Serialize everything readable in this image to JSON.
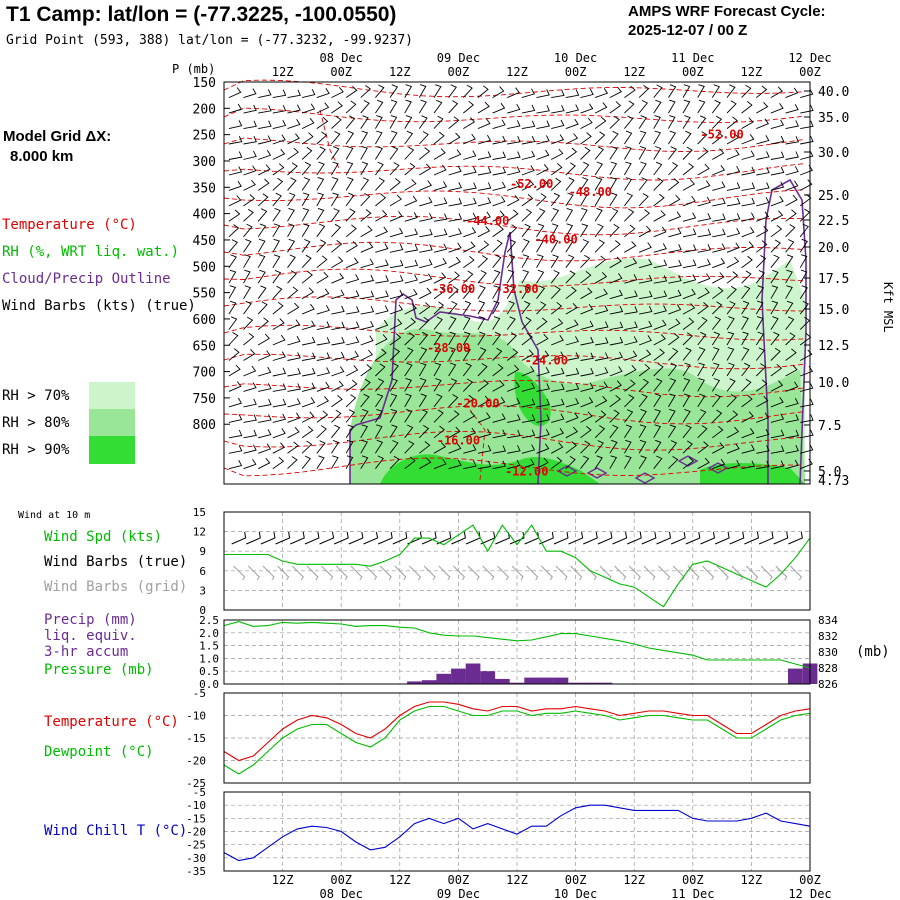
{
  "header": {
    "station_title": "T1 Camp:  lat/lon = (-77.3225, -100.0550)",
    "grid_point": "Grid Point (593, 388) lat/lon = (-77.3232, -99.9237)",
    "cycle_line1": "AMPS WRF Forecast Cycle:",
    "cycle_line2": "2025-12-07 / 00  Z"
  },
  "model_grid": {
    "line1": "Model Grid ΔX:",
    "line2": "8.000 km"
  },
  "colors": {
    "temperature": "#e00000",
    "rh": "#00bb00",
    "cloud": "#6a2c91",
    "wind_chill": "#0000cc",
    "precip": "#6a2c91",
    "grid_barbs": "#a0a0a0",
    "rh70": "#ccf5cc",
    "rh80": "#99e699",
    "rh90": "#33dd33"
  },
  "time_axis": {
    "top_hours": [
      "12Z",
      "00Z",
      "12Z",
      "00Z",
      "12Z",
      "00Z",
      "12Z",
      "00Z",
      "12Z",
      "00Z"
    ],
    "top_dates": [
      "08 Dec",
      "09 Dec",
      "10 Dec",
      "11 Dec",
      "12 Dec"
    ],
    "bottom_hours": [
      "12Z",
      "00Z",
      "12Z",
      "00Z",
      "12Z",
      "00Z",
      "12Z",
      "00Z",
      "12Z",
      "00Z"
    ],
    "bottom_dates": [
      "08 Dec",
      "09 Dec",
      "10 Dec",
      "11 Dec",
      "12 Dec"
    ]
  },
  "legend_upper": {
    "temperature": "Temperature (°C)",
    "rh": "RH (%, WRT liq. wat.)",
    "cloud": "Cloud/Precip Outline",
    "wind_barbs": "Wind Barbs (kts) (true)",
    "rh70": "RH > 70%",
    "rh80": "RH > 80%",
    "rh90": "RH > 90%"
  },
  "legend_wind": {
    "title": "Wind at 10 m",
    "speed": "Wind Spd (kts)",
    "barbs_true": "Wind Barbs (true)",
    "barbs_grid": "Wind Barbs (grid)"
  },
  "legend_precip": {
    "l1": "Precip (mm)",
    "l2": "liq. equiv.",
    "l3": "3-hr accum",
    "l4": "Pressure (mb)",
    "right_unit": "(mb)"
  },
  "legend_temp": {
    "temperature": "Temperature (°C)",
    "dewpoint": "Dewpoint (°C)"
  },
  "legend_chill": {
    "label": "Wind Chill T (°C)"
  },
  "chart_data": [
    {
      "type": "heatmap",
      "name": "upper-air cross section",
      "y_title": "P (mb)",
      "right_title": "Kft MSL",
      "pressure_ticks": [
        "150",
        "200",
        "250",
        "300",
        "350",
        "400",
        "450",
        "500",
        "550",
        "600",
        "650",
        "700",
        "750",
        "800"
      ],
      "height_ticks": [
        "40.0",
        "35.0",
        "30.0",
        "25.0",
        "22.5",
        "20.0",
        "17.5",
        "15.0",
        "12.5",
        "10.0",
        "7.5",
        "5.0",
        "4.73"
      ],
      "temperature_labels": [
        {
          "text": "-52.00",
          "hour": 102,
          "p": 235
        },
        {
          "text": "-52.00",
          "hour": 63,
          "p": 315
        },
        {
          "text": "-48.00",
          "hour": 75,
          "p": 328
        },
        {
          "text": "-44.00",
          "hour": 54,
          "p": 375
        },
        {
          "text": "-40.00",
          "hour": 68,
          "p": 405
        },
        {
          "text": "-36.00",
          "hour": 47,
          "p": 485
        },
        {
          "text": "-32.00",
          "hour": 60,
          "p": 485
        },
        {
          "text": "-28.00",
          "hour": 46,
          "p": 580
        },
        {
          "text": "-24.00",
          "hour": 66,
          "p": 600
        },
        {
          "text": "-20.00",
          "hour": 52,
          "p": 670
        },
        {
          "text": "-16.00",
          "hour": 48,
          "p": 730
        },
        {
          "text": "-12.00",
          "hour": 62,
          "p": 780
        }
      ]
    },
    {
      "type": "line",
      "name": "10 m wind speed",
      "ylim": [
        0,
        15
      ],
      "yticks": [
        "0",
        "3",
        "6",
        "9",
        "12",
        "15"
      ],
      "x_hours": [
        0,
        3,
        6,
        9,
        12,
        15,
        18,
        21,
        24,
        27,
        30,
        33,
        36,
        39,
        42,
        45,
        48,
        51,
        54,
        57,
        60,
        63,
        66,
        69,
        72,
        75,
        78,
        81,
        84,
        87,
        90,
        93,
        96,
        99,
        102,
        105,
        108,
        111,
        114,
        117,
        120
      ],
      "series": [
        {
          "values": [
            8.5,
            8.5,
            8.5,
            8.5,
            7.5,
            7,
            7,
            7,
            7,
            7,
            6.7,
            7.5,
            8.5,
            11,
            11,
            10,
            11.5,
            13,
            9,
            13,
            10,
            13,
            9,
            9,
            8,
            6,
            5,
            4,
            3.5,
            2,
            0.5,
            4,
            7,
            7.5,
            6.5,
            5.5,
            4.5,
            3.5,
            5.5,
            8,
            11
          ]
        }
      ]
    },
    {
      "type": "bar",
      "name": "3-hr precipitation and pressure",
      "ylim": [
        0,
        2.5
      ],
      "yticks": [
        "0.0",
        "0.5",
        "1.0",
        "1.5",
        "2.0",
        "2.5"
      ],
      "right_ticks": [
        "834",
        "832",
        "830",
        "828",
        "826"
      ],
      "right_range": [
        826,
        834
      ],
      "x_hours": [
        0,
        3,
        6,
        9,
        12,
        15,
        18,
        21,
        24,
        27,
        30,
        33,
        36,
        39,
        42,
        45,
        48,
        51,
        54,
        57,
        60,
        63,
        66,
        69,
        72,
        75,
        78,
        81,
        84,
        87,
        90,
        93,
        96,
        99,
        102,
        105,
        108,
        111,
        114,
        117,
        120
      ],
      "precip_bars": [
        0,
        0,
        0,
        0,
        0,
        0,
        0,
        0,
        0,
        0,
        0,
        0,
        0,
        0.1,
        0.15,
        0.4,
        0.6,
        0.8,
        0.5,
        0.2,
        0.05,
        0.25,
        0.25,
        0.25,
        0.05,
        0.05,
        0.05,
        0,
        0,
        0,
        0,
        0,
        0,
        0,
        0,
        0,
        0,
        0,
        0,
        0.6,
        0.8
      ],
      "series": [
        {
          "values": [
            833.3,
            833.8,
            833.2,
            833.3,
            833.7,
            833.6,
            833.7,
            833.6,
            833.5,
            833.2,
            833.3,
            833.3,
            833.1,
            833.0,
            832.4,
            832.1,
            832.0,
            832.0,
            831.8,
            831.6,
            831.4,
            831.5,
            831.9,
            832.3,
            832.3,
            832.0,
            831.7,
            831.4,
            831.0,
            830.5,
            830.2,
            829.9,
            829.6,
            829.0,
            829.0,
            829.0,
            829.0,
            829.0,
            829.0,
            828.5,
            828.0
          ]
        }
      ]
    },
    {
      "type": "line",
      "name": "temperature and dewpoint",
      "ylim": [
        -25,
        -5
      ],
      "yticks": [
        "-5",
        "-10",
        "-15",
        "-20",
        "-25"
      ],
      "x_hours": [
        0,
        3,
        6,
        9,
        12,
        15,
        18,
        21,
        24,
        27,
        30,
        33,
        36,
        39,
        42,
        45,
        48,
        51,
        54,
        57,
        60,
        63,
        66,
        69,
        72,
        75,
        78,
        81,
        84,
        87,
        90,
        93,
        96,
        99,
        102,
        105,
        108,
        111,
        114,
        117,
        120
      ],
      "series": [
        {
          "name": "Temperature",
          "values": [
            -18,
            -20,
            -19,
            -16,
            -13,
            -11,
            -10,
            -10.5,
            -12,
            -14,
            -15,
            -13,
            -10,
            -8,
            -7,
            -7,
            -7.5,
            -8.5,
            -9,
            -8,
            -8,
            -9,
            -8.5,
            -8.5,
            -8,
            -8.5,
            -9,
            -10,
            -9.5,
            -9,
            -9,
            -9.5,
            -10,
            -10,
            -12,
            -14,
            -14,
            -12,
            -10,
            -9,
            -8.5
          ]
        },
        {
          "name": "Dewpoint",
          "values": [
            -21,
            -23,
            -21,
            -18,
            -15,
            -13,
            -12,
            -12,
            -14,
            -16,
            -17,
            -15,
            -11,
            -9,
            -8,
            -8,
            -9,
            -10,
            -10,
            -9,
            -9,
            -10,
            -9.5,
            -9.5,
            -9,
            -9.5,
            -10,
            -11,
            -10.5,
            -10,
            -10,
            -10.5,
            -11,
            -11,
            -13,
            -15,
            -15,
            -13,
            -11,
            -10,
            -9.5
          ]
        }
      ]
    },
    {
      "type": "line",
      "name": "wind chill temperature",
      "ylim": [
        -35,
        -5
      ],
      "yticks": [
        "-5",
        "-10",
        "-15",
        "-20",
        "-25",
        "-30",
        "-35"
      ],
      "x_hours": [
        0,
        3,
        6,
        9,
        12,
        15,
        18,
        21,
        24,
        27,
        30,
        33,
        36,
        39,
        42,
        45,
        48,
        51,
        54,
        57,
        60,
        63,
        66,
        69,
        72,
        75,
        78,
        81,
        84,
        87,
        90,
        93,
        96,
        99,
        102,
        105,
        108,
        111,
        114,
        117,
        120
      ],
      "series": [
        {
          "name": "Wind Chill",
          "values": [
            -28,
            -31,
            -30,
            -26,
            -22,
            -19,
            -18,
            -18.5,
            -20,
            -24,
            -27,
            -26,
            -22,
            -17,
            -15,
            -17,
            -15,
            -19,
            -17,
            -19,
            -21,
            -18,
            -18,
            -14,
            -11,
            -10,
            -10,
            -11,
            -12,
            -12,
            -12,
            -12,
            -15,
            -16,
            -16,
            -16,
            -15,
            -13,
            -16,
            -17,
            -18
          ]
        }
      ]
    }
  ]
}
